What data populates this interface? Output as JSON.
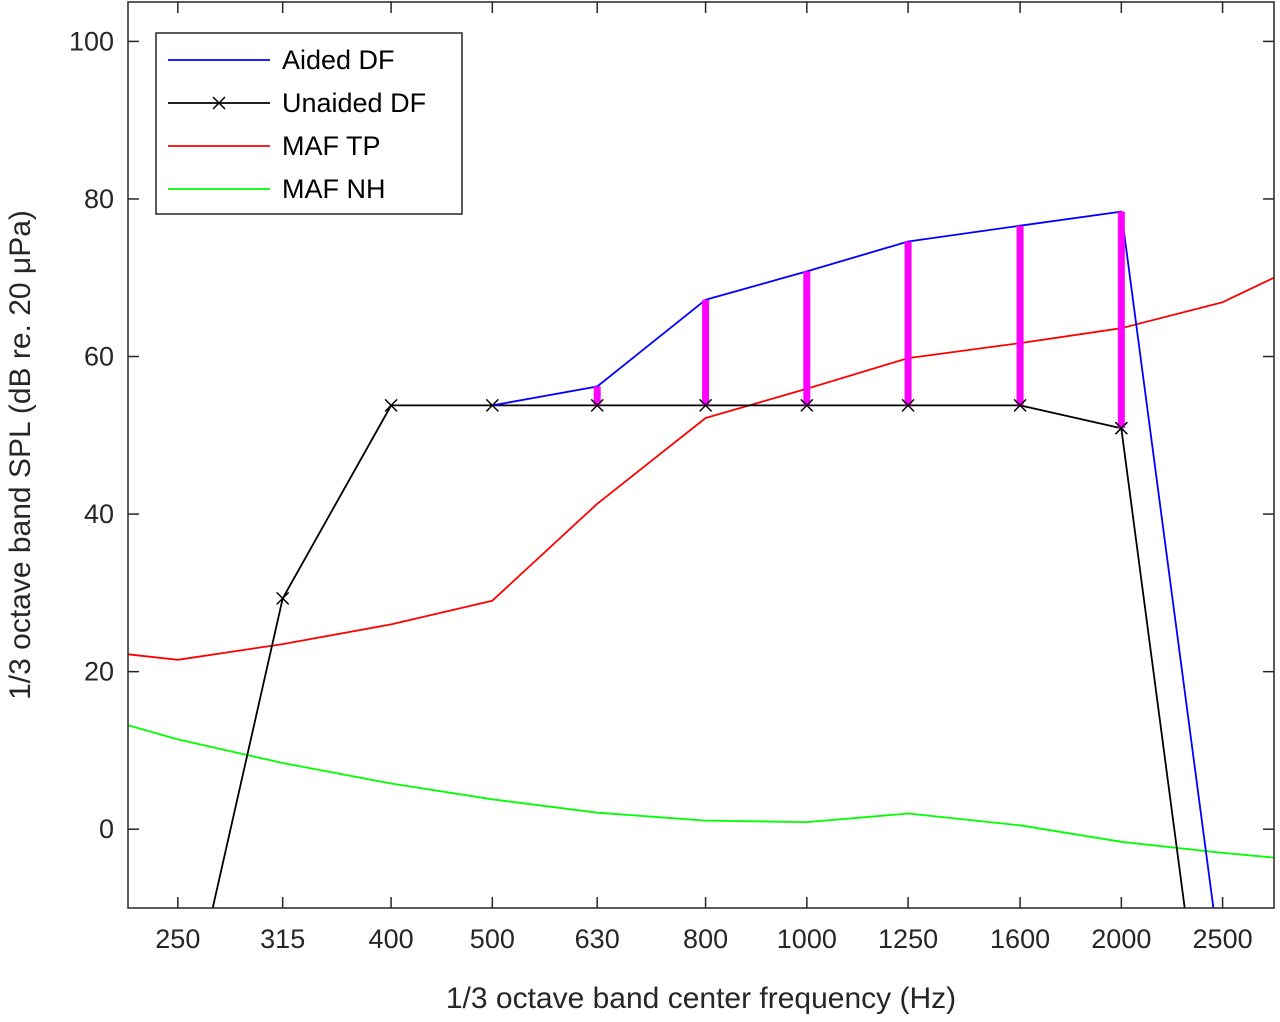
{
  "chart_data": {
    "type": "line",
    "title": "",
    "xlabel": "1/3 octave band center frequency (Hz)",
    "ylabel": "1/3 octave band SPL (dB re. 20 μPa)",
    "x_scale": "log",
    "xlim": [
      224,
      2800
    ],
    "ylim": [
      -10,
      105
    ],
    "x_ticks": [
      250,
      315,
      400,
      500,
      630,
      800,
      1000,
      1250,
      1600,
      2000,
      2500
    ],
    "x_tick_labels": [
      "250",
      "315",
      "400",
      "500",
      "630",
      "800",
      "1000",
      "1250",
      "1600",
      "2000",
      "2500"
    ],
    "y_ticks": [
      0,
      20,
      40,
      60,
      80,
      100
    ],
    "y_tick_labels": [
      "0",
      "20",
      "40",
      "60",
      "80",
      "100"
    ],
    "grid": false,
    "legend_position": "top-left",
    "series": [
      {
        "name": "Aided DF",
        "color": "#0000ff",
        "marker": "none",
        "x": [
          500,
          630,
          800,
          1000,
          1250,
          1600,
          2000,
          2450
        ],
        "y": [
          53.8,
          56.2,
          67.2,
          70.8,
          74.6,
          76.6,
          78.4,
          -10
        ]
      },
      {
        "name": "Unaided DF",
        "color": "#000000",
        "marker": "x",
        "x": [
          270,
          315,
          400,
          500,
          630,
          800,
          1000,
          1250,
          1600,
          2000,
          2300
        ],
        "y": [
          -10,
          29.3,
          53.8,
          53.8,
          53.8,
          53.8,
          53.8,
          53.8,
          53.8,
          50.9,
          -10
        ],
        "marker_x": [
          315,
          400,
          500,
          630,
          800,
          1000,
          1250,
          1600,
          2000
        ]
      },
      {
        "name": "MAF TP",
        "color": "#ff0000",
        "marker": "none",
        "x": [
          224,
          250,
          315,
          400,
          500,
          630,
          800,
          1000,
          1250,
          1600,
          2000,
          2500,
          2800
        ],
        "y": [
          22.2,
          21.5,
          23.5,
          26,
          29,
          41.3,
          52.2,
          55.9,
          59.8,
          61.7,
          63.6,
          66.9,
          70
        ]
      },
      {
        "name": "MAF NH",
        "color": "#00ff00",
        "marker": "none",
        "x": [
          224,
          250,
          315,
          400,
          500,
          630,
          800,
          1000,
          1250,
          1600,
          2000,
          2500,
          2800
        ],
        "y": [
          13.2,
          11.4,
          8.4,
          5.8,
          3.8,
          2.1,
          1.1,
          0.9,
          2,
          0.5,
          -1.6,
          -3,
          -3.6
        ]
      }
    ],
    "difference_bars": {
      "color": "#ff00ff",
      "x": [
        630,
        800,
        1000,
        1250,
        1600,
        2000
      ],
      "from": [
        53.8,
        53.8,
        53.8,
        53.8,
        53.8,
        50.9
      ],
      "to": [
        56.2,
        67.2,
        70.8,
        74.6,
        76.6,
        78.4
      ]
    }
  }
}
